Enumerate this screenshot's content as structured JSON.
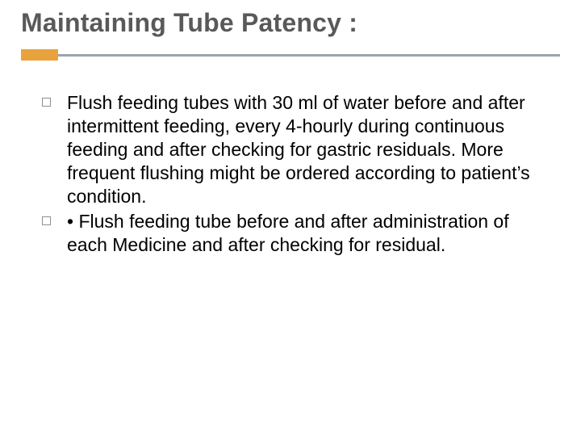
{
  "slide": {
    "title": "Maintaining Tube Patency :",
    "title_color": "#595959",
    "title_fontsize": 32,
    "accent_color": "#e8a33d",
    "divider_color": "#9ca3ad",
    "body_fontsize": 23,
    "body_color": "#000000",
    "background_color": "#ffffff",
    "bullets": [
      {
        "text": "Flush feeding tubes with 30 ml of water before and after intermittent feeding, every 4-hourly during continuous feeding and after checking for gastric residuals. More frequent flushing might be ordered according to patient’s condition."
      },
      {
        "text": "• Flush feeding tube before and after administration of each Medicine and after checking for residual."
      }
    ]
  }
}
